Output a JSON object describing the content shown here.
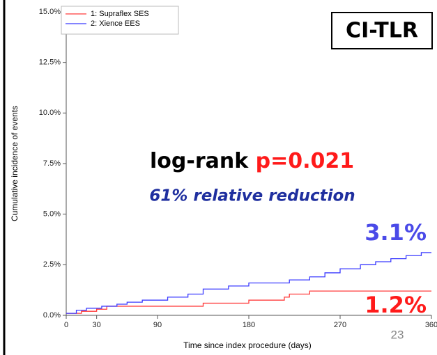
{
  "chart_data": {
    "type": "step",
    "title": "CI-TLR",
    "xlabel": "Time since index procedure (days)",
    "ylabel": "Cumulative incidence of events",
    "annotations": {
      "test_label": "log-rank",
      "p_value": "p=0.021",
      "reduction": "61% relative reduction",
      "blue_end": "3.1%",
      "red_end": "1.2%",
      "slide_number": "23"
    },
    "xlim": [
      0,
      360
    ],
    "xticks": [
      0,
      30,
      90,
      180,
      270,
      360
    ],
    "ylim": [
      0,
      15
    ],
    "yticks": [
      {
        "value": 0,
        "label": "0.0%"
      },
      {
        "value": 2.5,
        "label": "2.5%"
      },
      {
        "value": 5,
        "label": "5.0%"
      },
      {
        "value": 7.5,
        "label": "7.5%"
      },
      {
        "value": 10,
        "label": "10.0%"
      },
      {
        "value": 12.5,
        "label": "12.5%"
      },
      {
        "value": 15,
        "label": "15.0%"
      }
    ],
    "legend": "top-left",
    "series": [
      {
        "name": "1: Supraflex SES",
        "color": "#ff3b3b",
        "x": [
          0,
          15,
          30,
          40,
          135,
          180,
          215,
          220,
          240,
          360
        ],
        "values": [
          0.1,
          0.2,
          0.3,
          0.45,
          0.6,
          0.75,
          0.9,
          1.05,
          1.2,
          1.2
        ]
      },
      {
        "name": "2: Xience EES",
        "color": "#3b3bff",
        "x": [
          0,
          10,
          20,
          35,
          50,
          60,
          75,
          100,
          120,
          135,
          160,
          180,
          220,
          240,
          255,
          270,
          290,
          305,
          320,
          335,
          350,
          360
        ],
        "values": [
          0.1,
          0.25,
          0.35,
          0.45,
          0.55,
          0.65,
          0.75,
          0.9,
          1.05,
          1.3,
          1.45,
          1.6,
          1.75,
          1.9,
          2.1,
          2.3,
          2.5,
          2.65,
          2.8,
          2.95,
          3.1,
          3.1
        ]
      }
    ]
  }
}
